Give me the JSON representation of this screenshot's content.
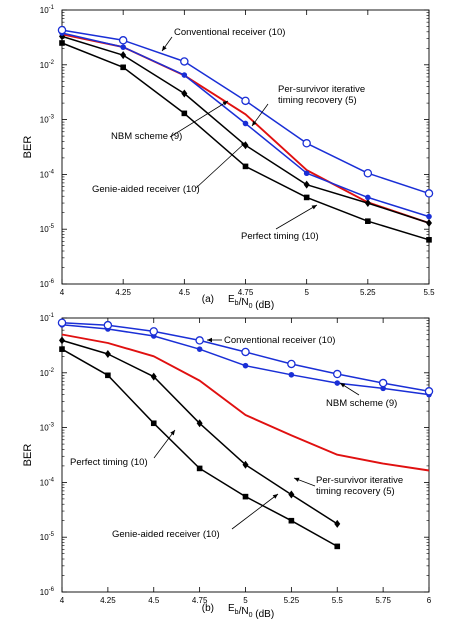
{
  "chart_data": [
    {
      "type": "line",
      "caption_tag": "(a)",
      "xlabel": "E_b/N_0 (dB)",
      "ylabel": "BER",
      "xlim": [
        4,
        5.5
      ],
      "ylim": [
        1e-06,
        0.1
      ],
      "yscale": "log",
      "x_ticks": [
        "4",
        "4.25",
        "4.5",
        "4.75",
        "5",
        "5.25",
        "5.5"
      ],
      "grid": false,
      "series": [
        {
          "key": "conv",
          "color": "#1a2fd6",
          "marker": "circle-open",
          "x": [
            4,
            4.25,
            4.5,
            4.75,
            5,
            5.25,
            5.5
          ],
          "y": [
            0.043,
            0.028,
            0.0115,
            0.0022,
            0.00037,
            0.000105,
            4.5e-05
          ]
        },
        {
          "key": "nbm",
          "color": "#1a2fd6",
          "marker": "dot",
          "x": [
            4,
            4.25,
            4.5,
            4.75,
            5,
            5.25,
            5.5
          ],
          "y": [
            0.038,
            0.021,
            0.0065,
            0.00085,
            0.000105,
            3.8e-05,
            1.7e-05
          ]
        },
        {
          "key": "ps",
          "color": "#e01010",
          "marker": "none",
          "x": [
            4,
            4.25,
            4.5,
            4.75,
            5,
            5.25,
            5.5
          ],
          "y": [
            0.036,
            0.021,
            0.0064,
            0.00125,
            0.00012,
            3.1e-05,
            1.3e-05
          ]
        },
        {
          "key": "genie",
          "color": "#000000",
          "marker": "diamond",
          "x": [
            4,
            4.25,
            4.5,
            4.75,
            5,
            5.25,
            5.5
          ],
          "y": [
            0.033,
            0.015,
            0.003,
            0.00034,
            6.5e-05,
            3e-05,
            1.3e-05
          ]
        },
        {
          "key": "perfect",
          "color": "#000000",
          "marker": "square",
          "x": [
            4,
            4.25,
            4.5,
            4.75,
            5,
            5.25,
            5.5
          ],
          "y": [
            0.025,
            0.009,
            0.0013,
            0.00014,
            3.8e-05,
            1.4e-05,
            6.4e-06
          ]
        }
      ],
      "annotations": [
        {
          "lines": [
            "Conventional receiver (10)"
          ]
        },
        {
          "lines": [
            "Per-survivor iterative",
            "timing recovery (5)"
          ]
        },
        {
          "lines": [
            "NBM scheme (9)"
          ]
        },
        {
          "lines": [
            "Genie-aided receiver (10)"
          ]
        },
        {
          "lines": [
            "Perfect timing (10)"
          ]
        }
      ]
    },
    {
      "type": "line",
      "caption_tag": "(b)",
      "xlabel": "E_b/N_0 (dB)",
      "ylabel": "BER",
      "xlim": [
        4,
        6
      ],
      "ylim": [
        1e-06,
        0.1
      ],
      "yscale": "log",
      "x_ticks": [
        "4",
        "4.25",
        "4.5",
        "4.75",
        "5",
        "5.25",
        "5.5",
        "5.75",
        "6"
      ],
      "grid": false,
      "series": [
        {
          "key": "conv",
          "color": "#1a2fd6",
          "marker": "circle-open",
          "x": [
            4,
            4.25,
            4.5,
            4.75,
            5,
            5.25,
            5.5,
            5.75,
            6
          ],
          "y": [
            0.082,
            0.074,
            0.057,
            0.039,
            0.024,
            0.0145,
            0.0095,
            0.0065,
            0.0046
          ]
        },
        {
          "key": "nbm",
          "color": "#1a2fd6",
          "marker": "dot",
          "x": [
            4,
            4.25,
            4.5,
            4.75,
            5,
            5.25,
            5.5,
            5.75,
            6
          ],
          "y": [
            0.075,
            0.063,
            0.047,
            0.027,
            0.0135,
            0.0092,
            0.0065,
            0.0052,
            0.004
          ]
        },
        {
          "key": "ps",
          "color": "#e01010",
          "marker": "none",
          "x": [
            4,
            4.25,
            4.5,
            4.75,
            5,
            5.25,
            5.5,
            5.75,
            6
          ],
          "y": [
            0.05,
            0.035,
            0.02,
            0.0072,
            0.0017,
            0.00072,
            0.00032,
            0.00022,
            0.000165
          ]
        },
        {
          "key": "genie",
          "color": "#000000",
          "marker": "diamond",
          "x": [
            4,
            4.25,
            4.5,
            4.75,
            5,
            5.25,
            5.5
          ],
          "y": [
            0.039,
            0.022,
            0.0085,
            0.0012,
            0.00021,
            6e-05,
            1.75e-05
          ]
        },
        {
          "key": "perfect",
          "color": "#000000",
          "marker": "square",
          "x": [
            4,
            4.25,
            4.5,
            4.75,
            5,
            5.25,
            5.5
          ],
          "y": [
            0.027,
            0.009,
            0.0012,
            0.00018,
            5.5e-05,
            2e-05,
            6.8e-06
          ]
        }
      ],
      "annotations": [
        {
          "lines": [
            "Conventional receiver (10)"
          ]
        },
        {
          "lines": [
            "NBM scheme (9)"
          ]
        },
        {
          "lines": [
            "Perfect timing (10)"
          ]
        },
        {
          "lines": [
            "Per-survivor iterative",
            "timing recovery (5)"
          ]
        },
        {
          "lines": [
            "Genie-aided receiver (10)"
          ]
        }
      ]
    }
  ]
}
